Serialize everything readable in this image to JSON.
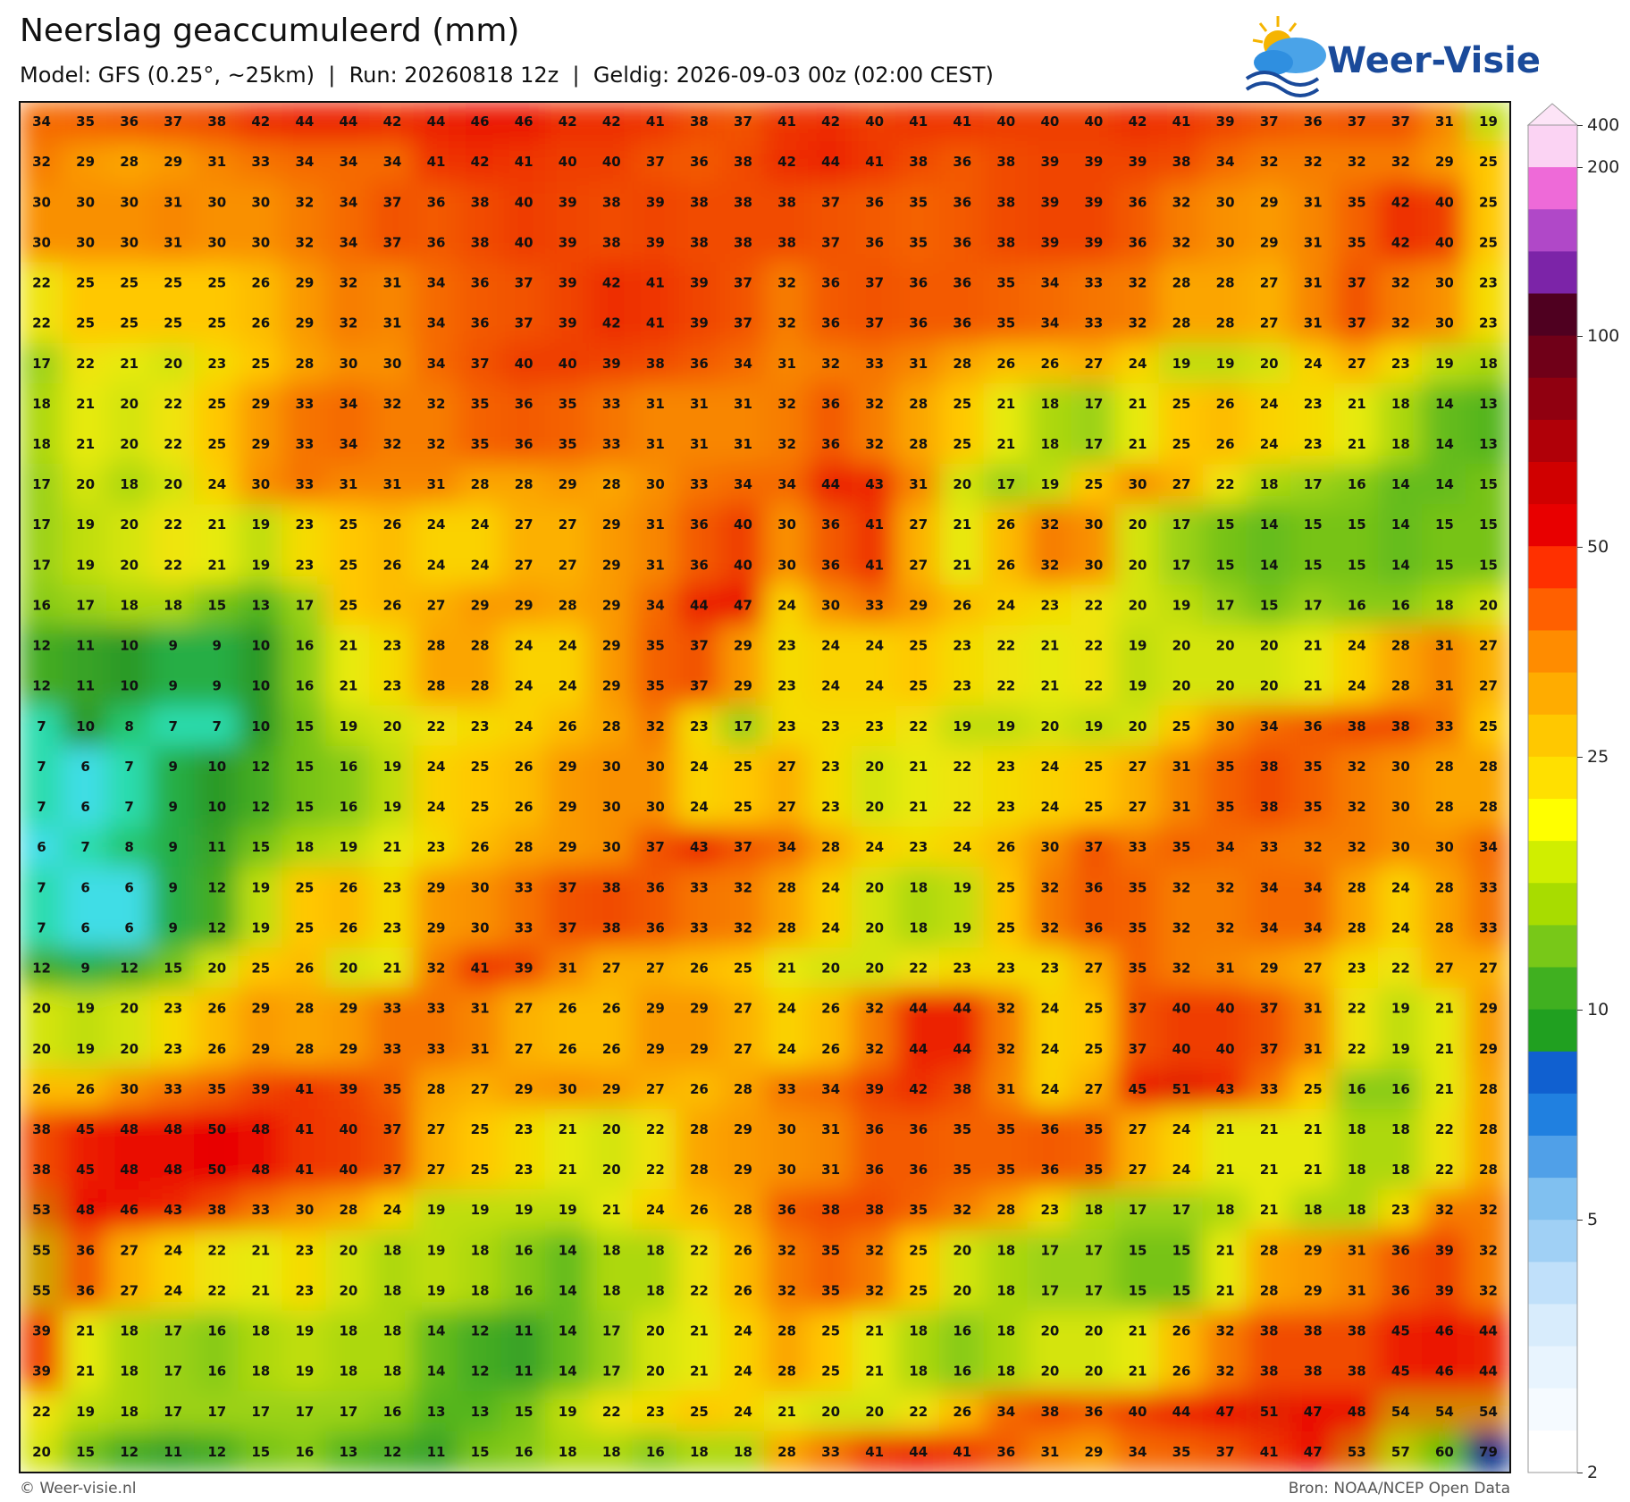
{
  "header": {
    "title": "Neerslag geaccumuleerd (mm)",
    "subtitle": "Model: GFS (0.25°, ~25km)  |  Run: 20260818 12z  |  Geldig: 2026-09-03 00z (02:00 CEST)",
    "logo": "Weer-Visie"
  },
  "map": {
    "values": [
      [
        34,
        35,
        36,
        37,
        38,
        42,
        44,
        44,
        42,
        44,
        46,
        46,
        42,
        42,
        41,
        38,
        37,
        41,
        42,
        40,
        41,
        41,
        40,
        40,
        40,
        42,
        41,
        39,
        37,
        36,
        37,
        37,
        31,
        19
      ],
      [
        32,
        29,
        28,
        29,
        31,
        33,
        34,
        34,
        34,
        41,
        42,
        41,
        40,
        40,
        37,
        36,
        38,
        42,
        44,
        41,
        38,
        36,
        38,
        39,
        39,
        39,
        38,
        34,
        32,
        32,
        32,
        32,
        29,
        25
      ],
      [
        30,
        30,
        30,
        31,
        30,
        30,
        32,
        34,
        37,
        36,
        38,
        40,
        39,
        38,
        39,
        38,
        38,
        38,
        37,
        36,
        35,
        36,
        38,
        39,
        39,
        36,
        32,
        30,
        29,
        31,
        35,
        42,
        40,
        25
      ],
      [
        30,
        30,
        30,
        31,
        30,
        30,
        32,
        34,
        37,
        36,
        38,
        40,
        39,
        38,
        39,
        38,
        38,
        38,
        37,
        36,
        35,
        36,
        38,
        39,
        39,
        36,
        32,
        30,
        29,
        31,
        35,
        42,
        40,
        25
      ],
      [
        22,
        25,
        25,
        25,
        25,
        26,
        29,
        32,
        31,
        34,
        36,
        37,
        39,
        42,
        41,
        39,
        37,
        32,
        36,
        37,
        36,
        36,
        35,
        34,
        33,
        32,
        28,
        28,
        27,
        31,
        37,
        32,
        30,
        23
      ],
      [
        22,
        25,
        25,
        25,
        25,
        26,
        29,
        32,
        31,
        34,
        36,
        37,
        39,
        42,
        41,
        39,
        37,
        32,
        36,
        37,
        36,
        36,
        35,
        34,
        33,
        32,
        28,
        28,
        27,
        31,
        37,
        32,
        30,
        23
      ],
      [
        17,
        22,
        21,
        20,
        23,
        25,
        28,
        30,
        30,
        34,
        37,
        40,
        40,
        39,
        38,
        36,
        34,
        31,
        32,
        33,
        31,
        28,
        26,
        26,
        27,
        24,
        19,
        19,
        20,
        24,
        27,
        23,
        19,
        18
      ],
      [
        18,
        21,
        20,
        22,
        25,
        29,
        33,
        34,
        32,
        32,
        35,
        36,
        35,
        33,
        31,
        31,
        31,
        32,
        36,
        32,
        28,
        25,
        21,
        18,
        17,
        21,
        25,
        26,
        24,
        23,
        21,
        18,
        14,
        13
      ],
      [
        18,
        21,
        20,
        22,
        25,
        29,
        33,
        34,
        32,
        32,
        35,
        36,
        35,
        33,
        31,
        31,
        31,
        32,
        36,
        32,
        28,
        25,
        21,
        18,
        17,
        21,
        25,
        26,
        24,
        23,
        21,
        18,
        14,
        13
      ],
      [
        17,
        20,
        18,
        20,
        24,
        30,
        33,
        31,
        31,
        31,
        28,
        28,
        29,
        28,
        30,
        33,
        34,
        34,
        44,
        43,
        31,
        20,
        17,
        19,
        25,
        30,
        27,
        22,
        18,
        17,
        16,
        14,
        14,
        15
      ],
      [
        17,
        19,
        20,
        22,
        21,
        19,
        23,
        25,
        26,
        24,
        24,
        27,
        27,
        29,
        31,
        36,
        40,
        30,
        36,
        41,
        27,
        21,
        26,
        32,
        30,
        20,
        17,
        15,
        14,
        15,
        15,
        14,
        15,
        15
      ],
      [
        17,
        19,
        20,
        22,
        21,
        19,
        23,
        25,
        26,
        24,
        24,
        27,
        27,
        29,
        31,
        36,
        40,
        30,
        36,
        41,
        27,
        21,
        26,
        32,
        30,
        20,
        17,
        15,
        14,
        15,
        15,
        14,
        15,
        15
      ],
      [
        16,
        17,
        18,
        18,
        15,
        13,
        17,
        25,
        26,
        27,
        29,
        29,
        28,
        29,
        34,
        44,
        47,
        24,
        30,
        33,
        29,
        26,
        24,
        23,
        22,
        20,
        19,
        17,
        15,
        17,
        16,
        16,
        18,
        20
      ],
      [
        12,
        11,
        10,
        9,
        9,
        10,
        16,
        21,
        23,
        28,
        28,
        24,
        24,
        29,
        35,
        37,
        29,
        23,
        24,
        24,
        25,
        23,
        22,
        21,
        22,
        19,
        20,
        20,
        20,
        21,
        24,
        28,
        31,
        27
      ],
      [
        12,
        11,
        10,
        9,
        9,
        10,
        16,
        21,
        23,
        28,
        28,
        24,
        24,
        29,
        35,
        37,
        29,
        23,
        24,
        24,
        25,
        23,
        22,
        21,
        22,
        19,
        20,
        20,
        20,
        21,
        24,
        28,
        31,
        27
      ],
      [
        7,
        10,
        8,
        7,
        7,
        10,
        15,
        19,
        20,
        22,
        23,
        24,
        26,
        28,
        32,
        23,
        17,
        23,
        23,
        23,
        22,
        19,
        19,
        20,
        19,
        20,
        25,
        30,
        34,
        36,
        38,
        38,
        33,
        25
      ],
      [
        7,
        6,
        7,
        9,
        10,
        12,
        15,
        16,
        19,
        24,
        25,
        26,
        29,
        30,
        30,
        24,
        25,
        27,
        23,
        20,
        21,
        22,
        23,
        24,
        25,
        27,
        31,
        35,
        38,
        35,
        32,
        30,
        28,
        28
      ],
      [
        7,
        6,
        7,
        9,
        10,
        12,
        15,
        16,
        19,
        24,
        25,
        26,
        29,
        30,
        30,
        24,
        25,
        27,
        23,
        20,
        21,
        22,
        23,
        24,
        25,
        27,
        31,
        35,
        38,
        35,
        32,
        30,
        28,
        28
      ],
      [
        6,
        7,
        8,
        9,
        11,
        15,
        18,
        19,
        21,
        23,
        26,
        28,
        29,
        30,
        37,
        43,
        37,
        34,
        28,
        24,
        23,
        24,
        26,
        30,
        37,
        33,
        35,
        34,
        33,
        32,
        32,
        30,
        30,
        34
      ],
      [
        7,
        6,
        6,
        9,
        12,
        19,
        25,
        26,
        23,
        29,
        30,
        33,
        37,
        38,
        36,
        33,
        32,
        28,
        24,
        20,
        18,
        19,
        25,
        32,
        36,
        35,
        32,
        32,
        34,
        34,
        28,
        24,
        28,
        33
      ],
      [
        7,
        6,
        6,
        9,
        12,
        19,
        25,
        26,
        23,
        29,
        30,
        33,
        37,
        38,
        36,
        33,
        32,
        28,
        24,
        20,
        18,
        19,
        25,
        32,
        36,
        35,
        32,
        32,
        34,
        34,
        28,
        24,
        28,
        33
      ],
      [
        12,
        9,
        12,
        15,
        20,
        25,
        26,
        20,
        21,
        32,
        41,
        39,
        31,
        27,
        27,
        26,
        25,
        21,
        20,
        20,
        22,
        23,
        23,
        23,
        27,
        35,
        32,
        31,
        29,
        27,
        23,
        22,
        27,
        27
      ],
      [
        20,
        19,
        20,
        23,
        26,
        29,
        28,
        29,
        33,
        33,
        31,
        27,
        26,
        26,
        29,
        29,
        27,
        24,
        26,
        32,
        44,
        44,
        32,
        24,
        25,
        37,
        40,
        40,
        37,
        31,
        22,
        19,
        21,
        29
      ],
      [
        20,
        19,
        20,
        23,
        26,
        29,
        28,
        29,
        33,
        33,
        31,
        27,
        26,
        26,
        29,
        29,
        27,
        24,
        26,
        32,
        44,
        44,
        32,
        24,
        25,
        37,
        40,
        40,
        37,
        31,
        22,
        19,
        21,
        29
      ],
      [
        26,
        26,
        30,
        33,
        35,
        39,
        41,
        39,
        35,
        28,
        27,
        29,
        30,
        29,
        27,
        26,
        28,
        33,
        34,
        39,
        42,
        38,
        31,
        24,
        27,
        45,
        51,
        43,
        33,
        25,
        16,
        16,
        21,
        28
      ],
      [
        38,
        45,
        48,
        48,
        50,
        48,
        41,
        40,
        37,
        27,
        25,
        23,
        21,
        20,
        22,
        28,
        29,
        30,
        31,
        36,
        36,
        35,
        35,
        36,
        35,
        27,
        24,
        21,
        21,
        21,
        18,
        18,
        22,
        28
      ],
      [
        38,
        45,
        48,
        48,
        50,
        48,
        41,
        40,
        37,
        27,
        25,
        23,
        21,
        20,
        22,
        28,
        29,
        30,
        31,
        36,
        36,
        35,
        35,
        36,
        35,
        27,
        24,
        21,
        21,
        21,
        18,
        18,
        22,
        28
      ],
      [
        53,
        48,
        46,
        43,
        38,
        33,
        30,
        28,
        24,
        19,
        19,
        19,
        19,
        21,
        24,
        26,
        28,
        36,
        38,
        38,
        35,
        32,
        28,
        23,
        18,
        17,
        17,
        18,
        21,
        18,
        18,
        23,
        32,
        32
      ],
      [
        55,
        36,
        27,
        24,
        22,
        21,
        23,
        20,
        18,
        19,
        18,
        16,
        14,
        18,
        18,
        22,
        26,
        32,
        35,
        32,
        25,
        20,
        18,
        17,
        17,
        15,
        15,
        21,
        28,
        29,
        31,
        36,
        39,
        32
      ],
      [
        55,
        36,
        27,
        24,
        22,
        21,
        23,
        20,
        18,
        19,
        18,
        16,
        14,
        18,
        18,
        22,
        26,
        32,
        35,
        32,
        25,
        20,
        18,
        17,
        17,
        15,
        15,
        21,
        28,
        29,
        31,
        36,
        39,
        32
      ],
      [
        39,
        21,
        18,
        17,
        16,
        18,
        19,
        18,
        18,
        14,
        12,
        11,
        14,
        17,
        20,
        21,
        24,
        28,
        25,
        21,
        18,
        16,
        18,
        20,
        20,
        21,
        26,
        32,
        38,
        38,
        38,
        45,
        46,
        44
      ],
      [
        39,
        21,
        18,
        17,
        16,
        18,
        19,
        18,
        18,
        14,
        12,
        11,
        14,
        17,
        20,
        21,
        24,
        28,
        25,
        21,
        18,
        16,
        18,
        20,
        20,
        21,
        26,
        32,
        38,
        38,
        38,
        45,
        46,
        44
      ],
      [
        22,
        19,
        18,
        17,
        17,
        17,
        17,
        17,
        16,
        13,
        13,
        15,
        19,
        22,
        23,
        25,
        24,
        21,
        20,
        20,
        22,
        26,
        34,
        38,
        36,
        40,
        44,
        47,
        51,
        47,
        48,
        54,
        54,
        54
      ],
      [
        20,
        15,
        12,
        11,
        12,
        15,
        16,
        13,
        12,
        11,
        15,
        16,
        18,
        18,
        16,
        18,
        18,
        28,
        33,
        41,
        44,
        41,
        36,
        31,
        29,
        34,
        35,
        37,
        41,
        47,
        53,
        57,
        60,
        79
      ]
    ]
  },
  "colorbar": {
    "ticks": [
      400,
      200,
      100,
      50,
      25,
      10,
      5,
      2
    ],
    "colors": [
      "#fbd3f3",
      "#ee6ad8",
      "#4f0020",
      "#e80000",
      "#ffc800",
      "#2a9a28",
      "#5aaef0",
      "#ffffff"
    ]
  },
  "footer": {
    "credit": "© Weer-visie.nl",
    "source": "Bron: NOAA/NCEP Open Data"
  }
}
